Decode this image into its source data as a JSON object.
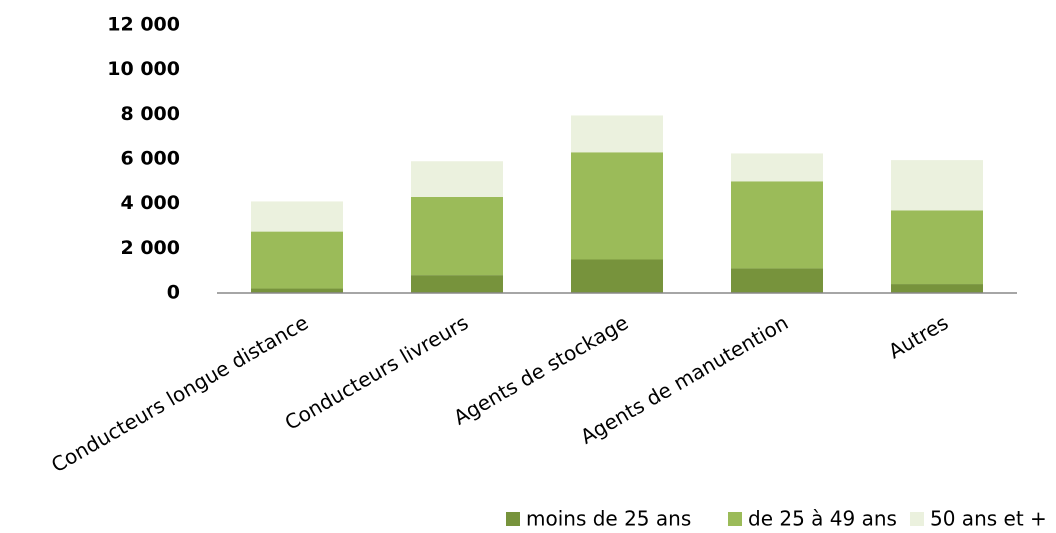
{
  "chart_data": {
    "type": "stacked_bar",
    "categories": [
      "Conducteurs longue distance",
      "Conducteurs livreurs",
      "Agents de stockage",
      "Agents de manutention",
      "Autres"
    ],
    "series": [
      {
        "name": "moins de 25 ans",
        "color": "#77933c",
        "values": [
          200,
          800,
          1500,
          1100,
          400
        ]
      },
      {
        "name": "de 25 à 49 ans",
        "color": "#9bbb59",
        "values": [
          2550,
          3500,
          4800,
          3900,
          3300
        ]
      },
      {
        "name": "50 ans et +",
        "color": "#ebf1de",
        "values": [
          1350,
          1600,
          1650,
          1250,
          2250
        ]
      }
    ],
    "ylim": [
      0,
      12000
    ],
    "yticks": [
      {
        "value": 0,
        "label": "0"
      },
      {
        "value": 2000,
        "label": "2 000"
      },
      {
        "value": 4000,
        "label": "4 000"
      },
      {
        "value": 6000,
        "label": "6 000"
      },
      {
        "value": 8000,
        "label": "8 000"
      },
      {
        "value": 10000,
        "label": "10 000"
      },
      {
        "value": 12000,
        "label": "12 000"
      }
    ],
    "grid": false,
    "legend": "bottom-right"
  }
}
